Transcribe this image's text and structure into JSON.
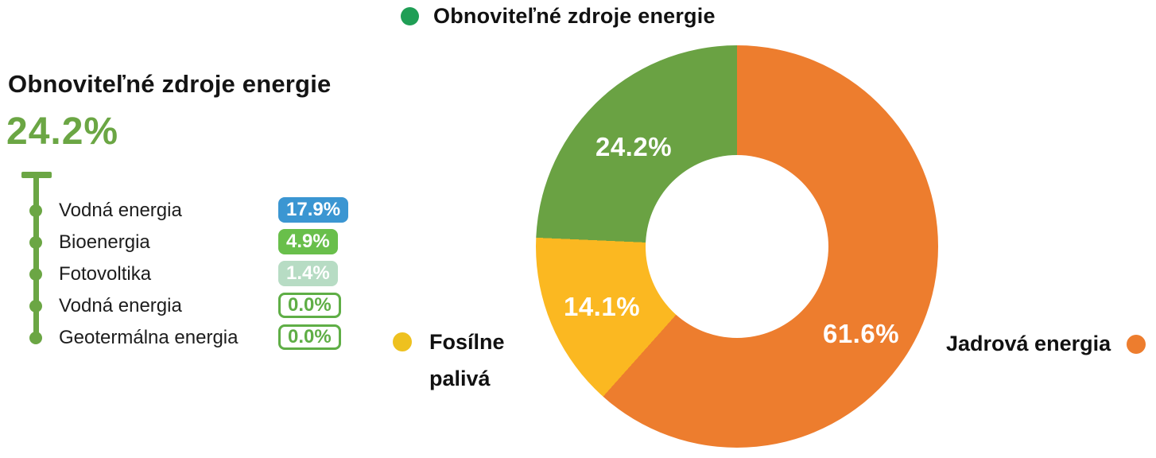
{
  "colors": {
    "accent_green": "#6BA644",
    "renewables_dot": "#1F9E55",
    "fossil_dot": "#EEC11F",
    "nuclear_dot": "#ED7D2E"
  },
  "top_legend": {
    "label": "Obnoviteľné zdroje energie"
  },
  "breakdown": {
    "title": "Obnoviteľné zdroje energie",
    "total": "24.2%",
    "items": [
      {
        "label": "Vodná energia",
        "value": "17.9%",
        "style": "filled",
        "bg": "#3B96D2",
        "fg": "#FFFFFF"
      },
      {
        "label": "Bioenergia",
        "value": "4.9%",
        "style": "filled",
        "bg": "#69BF4B",
        "fg": "#FFFFFF"
      },
      {
        "label": "Fotovoltika",
        "value": "1.4%",
        "style": "filled",
        "bg": "#B7DCC4",
        "fg": "#FFFFFF"
      },
      {
        "label": "Vodná energia",
        "value": "0.0%",
        "style": "outline",
        "bg": "#FFFFFF",
        "fg": "#5FAE46"
      },
      {
        "label": "Geotermálna energia",
        "value": "0.0%",
        "style": "outline",
        "bg": "#FFFFFF",
        "fg": "#5FAE46"
      }
    ]
  },
  "side_legends": {
    "fossil": "Fosílne palivá",
    "nuclear": "Jadrová energia"
  },
  "chart_data": {
    "type": "pie",
    "donut": true,
    "start_angle_deg": 0,
    "direction": "clockwise",
    "labels_on_slices": true,
    "legend_position": "outside",
    "slices": [
      {
        "label": "Jadrová energia",
        "value": 61.6,
        "display": "61.6%",
        "color": "#ED7D2E"
      },
      {
        "label": "Fosílne palivá",
        "value": 14.1,
        "display": "14.1%",
        "color": "#FBB821"
      },
      {
        "label": "Obnoviteľné zdroje energie",
        "value": 24.2,
        "display": "24.2%",
        "color": "#6AA243"
      }
    ]
  }
}
